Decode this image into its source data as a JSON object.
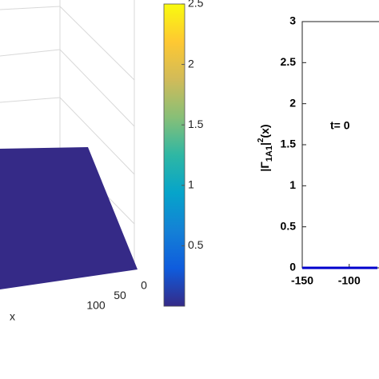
{
  "chart_data": [
    {
      "type": "surface",
      "xlabel": "x",
      "xticks": [
        0,
        50,
        100
      ],
      "xlim": [
        0,
        150
      ],
      "z": [
        [
          0,
          0
        ],
        [
          0,
          0
        ]
      ],
      "clim": [
        0,
        2.5
      ],
      "colorbar_ticks": [
        0.5,
        1,
        1.5,
        2,
        2.5
      ],
      "colormap": [
        "#352a87",
        "#0f5cdd",
        "#1481d6",
        "#06a4ca",
        "#2eb7a4",
        "#87bf77",
        "#d1bb59",
        "#fec832",
        "#f9fb0e"
      ]
    },
    {
      "type": "line",
      "annotation": "t= 0",
      "ylabel": {
        "base": "|Γ",
        "sub": "1A1",
        "mid": "|",
        "sup": "2",
        "end": "(x)"
      },
      "x": [
        -150,
        -70
      ],
      "series": [
        {
          "color": "#0000cc",
          "values": [
            0,
            0
          ]
        }
      ],
      "xlim": [
        -150,
        -70
      ],
      "xticks": [
        -150,
        -100
      ],
      "ylim": [
        0,
        3
      ],
      "yticks": [
        0,
        0.5,
        1,
        1.5,
        2,
        2.5,
        3
      ]
    }
  ]
}
